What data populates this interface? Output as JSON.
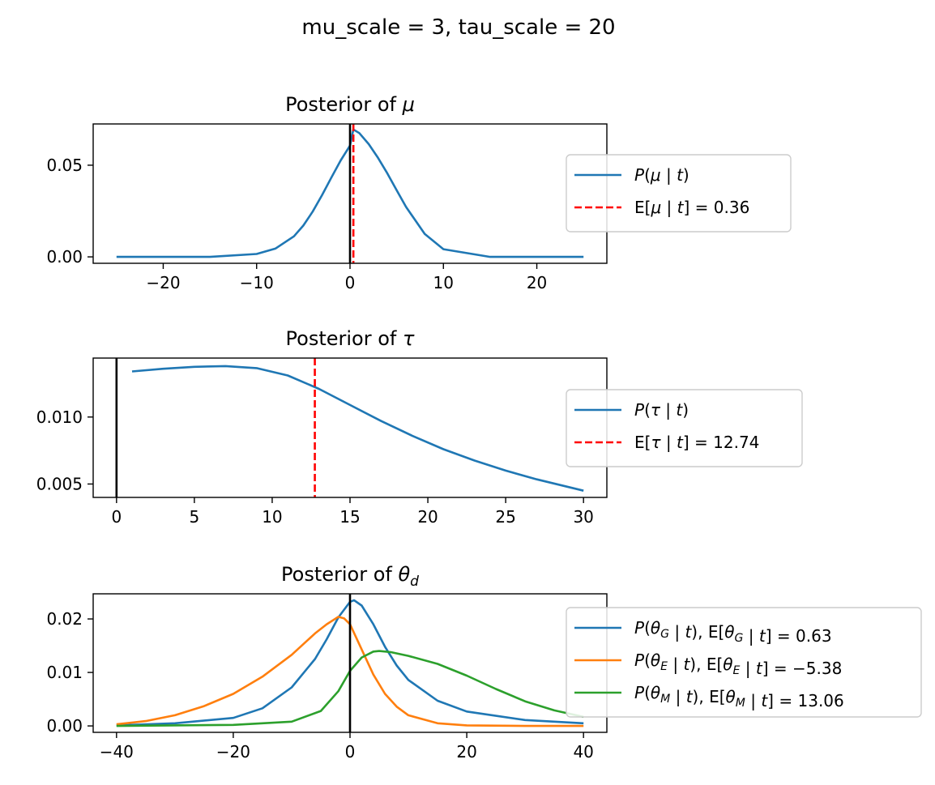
{
  "suptitle": "mu_scale = 3, tau_scale = 20",
  "chart_data": [
    {
      "type": "line",
      "title_text": "Posterior of ",
      "title_symbol": "μ",
      "title_subscript": "",
      "xlim": [
        -27.5,
        27.5
      ],
      "ylim": [
        -0.0035,
        0.0725
      ],
      "xticks": [
        -20,
        -10,
        0,
        10,
        20
      ],
      "xtick_labels": [
        "−20",
        "−10",
        "0",
        "10",
        "20"
      ],
      "yticks": [
        0.0,
        0.05
      ],
      "ytick_labels": [
        "0.00",
        "0.05"
      ],
      "vline_zero": 0,
      "series": [
        {
          "name": "P(μ | t)",
          "color": "#1f77b4",
          "x": [
            -25,
            -15,
            -10,
            -8,
            -6,
            -5,
            -4,
            -3,
            -2,
            -1,
            0,
            0.36,
            1,
            2,
            3,
            4,
            5,
            6,
            8,
            10,
            15,
            25
          ],
          "y": [
            0.0,
            0.0,
            0.0016,
            0.0045,
            0.0112,
            0.0171,
            0.0247,
            0.0336,
            0.0432,
            0.0526,
            0.0607,
            0.0695,
            0.0675,
            0.0615,
            0.054,
            0.0455,
            0.0363,
            0.0272,
            0.0125,
            0.0042,
            0.0,
            0.0
          ]
        }
      ],
      "mean_lines": [
        {
          "name": "E[μ | t] = 0.36",
          "value": 0.36,
          "color": "#ff0000"
        }
      ],
      "legend": [
        {
          "label": "P(μ | t)",
          "color": "#1f77b4",
          "style": "solid"
        },
        {
          "label": "E[μ | t] = 0.36",
          "color": "#ff0000",
          "style": "dashed"
        }
      ],
      "legend_placement": "right, outside axes"
    },
    {
      "type": "line",
      "title_text": "Posterior of ",
      "title_symbol": "τ",
      "title_subscript": "",
      "xlim": [
        -1.5,
        31.5
      ],
      "ylim": [
        0.004,
        0.0144
      ],
      "xticks": [
        0,
        5,
        10,
        15,
        20,
        25,
        30
      ],
      "xtick_labels": [
        "0",
        "5",
        "10",
        "15",
        "20",
        "25",
        "30"
      ],
      "yticks": [
        0.005,
        0.01
      ],
      "ytick_labels": [
        "0.005",
        "0.010"
      ],
      "vline_zero": 0,
      "series": [
        {
          "name": "P(τ | t)",
          "color": "#1f77b4",
          "x": [
            1,
            3,
            5,
            7,
            9,
            11,
            13,
            15,
            17,
            19,
            21,
            23,
            25,
            27,
            30
          ],
          "y": [
            0.0134,
            0.0136,
            0.01375,
            0.0138,
            0.01365,
            0.0131,
            0.0121,
            0.0109,
            0.0097,
            0.0086,
            0.0076,
            0.00675,
            0.006,
            0.00535,
            0.0045
          ]
        }
      ],
      "mean_lines": [
        {
          "name": "E[τ | t] = 12.74",
          "value": 12.74,
          "color": "#ff0000"
        }
      ],
      "legend": [
        {
          "label": "P(τ | t)",
          "color": "#1f77b4",
          "style": "solid"
        },
        {
          "label": "E[τ | t] = 12.74",
          "color": "#ff0000",
          "style": "dashed"
        }
      ],
      "legend_placement": "right, outside axes"
    },
    {
      "type": "line",
      "title_text": "Posterior of ",
      "title_symbol": "θ",
      "title_subscript": "d",
      "xlim": [
        -44,
        44
      ],
      "ylim": [
        -0.0012,
        0.0247
      ],
      "xticks": [
        -40,
        -20,
        0,
        20,
        40
      ],
      "xtick_labels": [
        "−40",
        "−20",
        "0",
        "20",
        "40"
      ],
      "yticks": [
        0.0,
        0.01,
        0.02
      ],
      "ytick_labels": [
        "0.00",
        "0.01",
        "0.02"
      ],
      "vline_zero": 0,
      "series": [
        {
          "name": "P(θG | t), E[θG | t] = 0.63",
          "color": "#1f77b4",
          "x": [
            -40,
            -30,
            -20,
            -15,
            -10,
            -6,
            -4,
            -2,
            0,
            0.7,
            2,
            4,
            6,
            8,
            10,
            15,
            20,
            30,
            40
          ],
          "y": [
            0.0001,
            0.0005,
            0.0015,
            0.0033,
            0.0072,
            0.0125,
            0.0162,
            0.0203,
            0.0232,
            0.0235,
            0.0225,
            0.019,
            0.0148,
            0.0113,
            0.0086,
            0.0047,
            0.0027,
            0.0011,
            0.0005
          ]
        },
        {
          "name": "P(θE | t), E[θE | t] = −5.38",
          "color": "#ff7f0e",
          "x": [
            -40,
            -35,
            -30,
            -25,
            -20,
            -15,
            -10,
            -6,
            -4,
            -2,
            -1,
            0,
            2,
            4,
            6,
            8,
            10,
            15,
            20,
            30,
            40
          ],
          "y": [
            0.0003,
            0.0009,
            0.002,
            0.0037,
            0.006,
            0.0092,
            0.0133,
            0.0173,
            0.019,
            0.0204,
            0.0201,
            0.019,
            0.0143,
            0.0096,
            0.006,
            0.0036,
            0.002,
            0.0005,
            0.0001,
            0.0,
            0.0
          ]
        },
        {
          "name": "P(θM | t), E[θM | t] = 13.06",
          "color": "#2ca02c",
          "x": [
            -40,
            -20,
            -10,
            -5,
            -2,
            0,
            2,
            4,
            5,
            7,
            10,
            15,
            20,
            25,
            30,
            35,
            40
          ],
          "y": [
            0.0,
            0.0002,
            0.0008,
            0.0028,
            0.0065,
            0.0103,
            0.0128,
            0.0139,
            0.014,
            0.0138,
            0.0131,
            0.0116,
            0.0094,
            0.0069,
            0.0046,
            0.0029,
            0.0017
          ]
        }
      ],
      "mean_lines": [],
      "legend": [
        {
          "label": "P(θG | t),  E[θG | t] = 0.63",
          "color": "#1f77b4",
          "style": "solid"
        },
        {
          "label": "P(θE | t),  E[θE | t] = −5.38",
          "color": "#ff7f0e",
          "style": "solid"
        },
        {
          "label": "P(θM | t),  E[θM | t] = 13.06",
          "color": "#2ca02c",
          "style": "solid"
        }
      ],
      "legend_placement": "right, outside axes"
    }
  ]
}
